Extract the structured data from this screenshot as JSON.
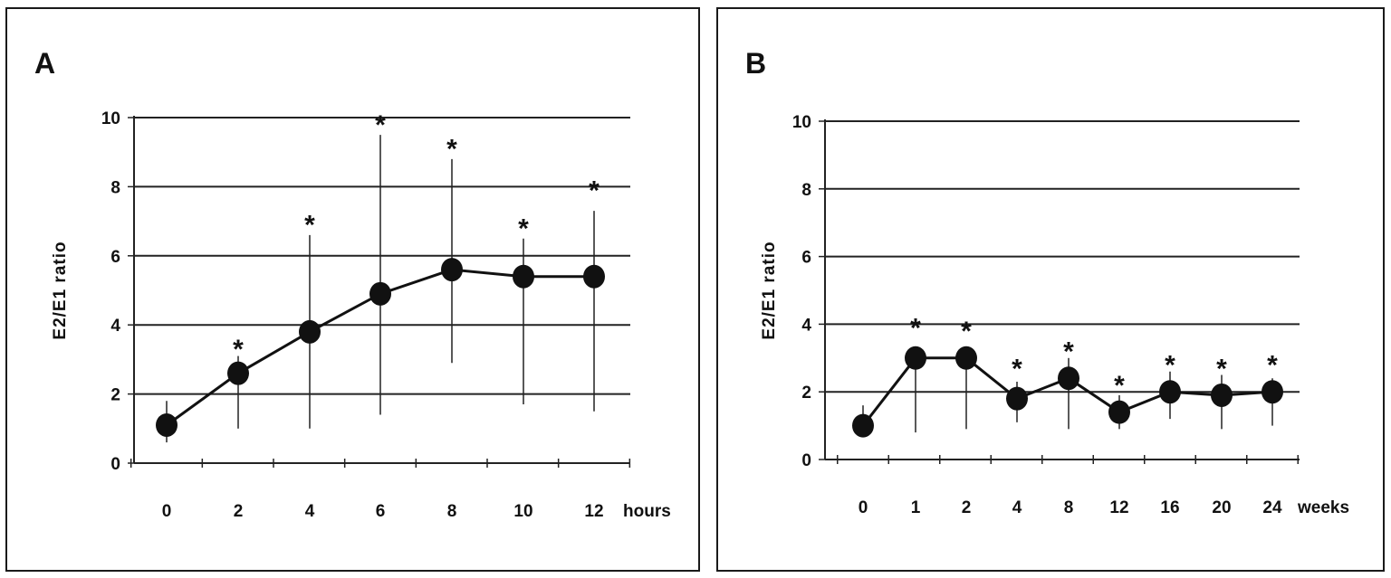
{
  "chart_data": [
    {
      "panel": "A",
      "type": "line",
      "categories": [
        "0",
        "2",
        "4",
        "6",
        "8",
        "10",
        "12"
      ],
      "unit_label": "hours",
      "ylabel": "E2/E1 ratio",
      "ylim": [
        0,
        10
      ],
      "yticks": [
        "0",
        "2",
        "4",
        "6",
        "8",
        "10"
      ],
      "grid": true,
      "series": [
        {
          "values": [
            1.1,
            2.6,
            3.8,
            4.9,
            5.6,
            5.4,
            5.4
          ],
          "error_low": [
            0.6,
            1.0,
            1.0,
            1.4,
            2.9,
            1.7,
            1.5
          ],
          "error_high": [
            1.8,
            3.1,
            6.6,
            9.5,
            8.8,
            6.5,
            7.3
          ]
        }
      ],
      "annotations": [
        {
          "category": "2",
          "text": "*",
          "y": 3.4
        },
        {
          "category": "4",
          "text": "*",
          "y": 7.0
        },
        {
          "category": "6",
          "text": "*",
          "y": 9.9
        },
        {
          "category": "8",
          "text": "*",
          "y": 9.2
        },
        {
          "category": "10",
          "text": "*",
          "y": 6.9
        },
        {
          "category": "12",
          "text": "*",
          "y": 8.0
        }
      ]
    },
    {
      "panel": "B",
      "type": "line",
      "categories": [
        "0",
        "1",
        "2",
        "4",
        "8",
        "12",
        "16",
        "20",
        "24"
      ],
      "unit_label": "weeks",
      "ylabel": "E2/E1 ratio",
      "ylim": [
        0,
        10
      ],
      "yticks": [
        "0",
        "2",
        "4",
        "6",
        "8",
        "10"
      ],
      "grid": true,
      "series": [
        {
          "values": [
            1.0,
            3.0,
            3.0,
            1.8,
            2.4,
            1.4,
            2.0,
            1.9,
            2.0
          ],
          "error_low": [
            0.7,
            0.8,
            0.9,
            1.1,
            0.9,
            0.9,
            1.2,
            0.9,
            1.0
          ],
          "error_high": [
            1.6,
            3.0,
            3.0,
            2.3,
            3.0,
            1.9,
            2.6,
            2.5,
            2.4
          ]
        }
      ],
      "annotations": [
        {
          "category": "1",
          "text": "*",
          "y": 4.0
        },
        {
          "category": "2",
          "text": "*",
          "y": 3.9
        },
        {
          "category": "4",
          "text": "*",
          "y": 2.8
        },
        {
          "category": "8",
          "text": "*",
          "y": 3.3
        },
        {
          "category": "12",
          "text": "*",
          "y": 2.3
        },
        {
          "category": "16",
          "text": "*",
          "y": 2.9
        },
        {
          "category": "20",
          "text": "*",
          "y": 2.8
        },
        {
          "category": "24",
          "text": "*",
          "y": 2.9
        }
      ]
    }
  ]
}
